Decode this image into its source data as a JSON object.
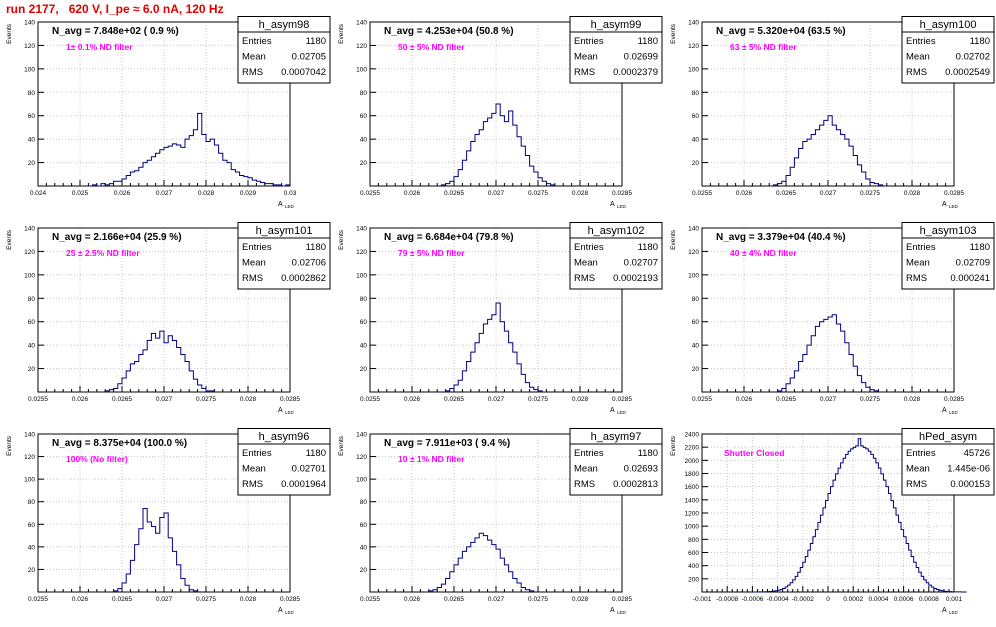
{
  "header": {
    "run_title": "run 2177,   620 V, I_pe ≈ 6.0 nA, 120 Hz"
  },
  "common": {
    "ylabel": "Events",
    "xlabel": "A",
    "xlabel_sub": "LED"
  },
  "colors": {
    "hist": "#000080",
    "filter": "#ff00ff",
    "title": "#e00000",
    "grid": "#c8c8c8"
  },
  "stats_labels": {
    "entries": "Entries",
    "mean": "Mean",
    "rms": "RMS"
  },
  "chart_data": [
    {
      "type": "bar",
      "name": "h_asym98",
      "navg": "N_avg = 7.848e+02 ( 0.9 %)",
      "filter": "1± 0.1% ND filter",
      "stats": {
        "entries": "1180",
        "mean": "0.02705",
        "rms": "0.0007042"
      },
      "xlim": [
        0.024,
        0.03
      ],
      "ylim": [
        0,
        140
      ],
      "xticks": [
        "0.024",
        "0.025",
        "0.026",
        "0.027",
        "0.028",
        "0.029",
        "0.03"
      ],
      "yticks": [
        "20",
        "40",
        "60",
        "80",
        "100",
        "120",
        "140"
      ],
      "bins_start": 0.0252,
      "bin_width": 0.0001,
      "values": [
        0,
        1,
        0,
        2,
        1,
        2,
        4,
        4,
        6,
        9,
        12,
        13,
        16,
        20,
        22,
        25,
        28,
        31,
        33,
        34,
        36,
        35,
        33,
        40,
        43,
        48,
        62,
        44,
        38,
        40,
        35,
        28,
        22,
        20,
        14,
        12,
        9,
        8,
        7,
        5,
        4,
        3,
        2,
        2,
        1,
        1,
        0,
        1
      ]
    },
    {
      "type": "bar",
      "name": "h_asym99",
      "navg": "N_avg = 4.253e+04 (50.8 %)",
      "filter": "50 ± 5% ND filter",
      "stats": {
        "entries": "1180",
        "mean": "0.02699",
        "rms": "0.0002379"
      },
      "xlim": [
        0.0255,
        0.0285
      ],
      "ylim": [
        0,
        140
      ],
      "xticks": [
        "0.0255",
        "0.026",
        "0.0265",
        "0.027",
        "0.0275",
        "0.028",
        "0.0285"
      ],
      "yticks": [
        "20",
        "40",
        "60",
        "80",
        "100",
        "120",
        "140"
      ],
      "bins_start": 0.02635,
      "bin_width": 5e-05,
      "values": [
        1,
        2,
        4,
        8,
        14,
        22,
        30,
        38,
        44,
        48,
        55,
        58,
        62,
        70,
        60,
        55,
        64,
        52,
        42,
        34,
        26,
        17,
        12,
        7,
        4,
        2,
        1
      ]
    },
    {
      "type": "bar",
      "name": "h_asym100",
      "navg": "N_avg = 5.320e+04 (63.5 %)",
      "filter": "63 ± 5% ND filter",
      "stats": {
        "entries": "1180",
        "mean": "0.02702",
        "rms": "0.0002549"
      },
      "xlim": [
        0.0255,
        0.0285
      ],
      "ylim": [
        0,
        140
      ],
      "xticks": [
        "0.0255",
        "0.026",
        "0.0265",
        "0.027",
        "0.0275",
        "0.028",
        "0.0285"
      ],
      "yticks": [
        "20",
        "40",
        "60",
        "80",
        "100",
        "120",
        "140"
      ],
      "bins_start": 0.02635,
      "bin_width": 5e-05,
      "values": [
        1,
        2,
        4,
        9,
        16,
        24,
        32,
        38,
        40,
        44,
        48,
        52,
        56,
        60,
        52,
        48,
        44,
        40,
        34,
        26,
        18,
        12,
        6,
        3,
        2,
        1
      ]
    },
    {
      "type": "bar",
      "name": "h_asym101",
      "navg": "N_avg = 2.166e+04 (25.9 %)",
      "filter": "25 ± 2.5% ND filter",
      "stats": {
        "entries": "1180",
        "mean": "0.02706",
        "rms": "0.0002862"
      },
      "xlim": [
        0.0255,
        0.0285
      ],
      "ylim": [
        0,
        140
      ],
      "xticks": [
        "0.0255",
        "0.026",
        "0.0265",
        "0.027",
        "0.0275",
        "0.028",
        "0.0285"
      ],
      "yticks": [
        "20",
        "40",
        "60",
        "80",
        "100",
        "120",
        "140"
      ],
      "bins_start": 0.0263,
      "bin_width": 5e-05,
      "values": [
        1,
        2,
        3,
        7,
        12,
        18,
        24,
        26,
        32,
        36,
        44,
        50,
        46,
        52,
        42,
        48,
        44,
        38,
        32,
        26,
        18,
        11,
        6,
        3,
        1,
        1
      ]
    },
    {
      "type": "bar",
      "name": "h_asym102",
      "navg": "N_avg = 6.684e+04 (79.8 %)",
      "filter": "79 ± 5% ND filter",
      "stats": {
        "entries": "1180",
        "mean": "0.02707",
        "rms": "0.0002193"
      },
      "xlim": [
        0.0255,
        0.0285
      ],
      "ylim": [
        0,
        140
      ],
      "xticks": [
        "0.0255",
        "0.026",
        "0.0265",
        "0.027",
        "0.0275",
        "0.028",
        "0.0285"
      ],
      "yticks": [
        "20",
        "40",
        "60",
        "80",
        "100",
        "120",
        "140"
      ],
      "bins_start": 0.0264,
      "bin_width": 5e-05,
      "values": [
        1,
        3,
        6,
        10,
        18,
        26,
        34,
        42,
        50,
        58,
        62,
        66,
        76,
        60,
        52,
        42,
        34,
        24,
        15,
        8,
        4,
        2,
        1
      ]
    },
    {
      "type": "bar",
      "name": "h_asym103",
      "navg": "N_avg = 3.379e+04 (40.4 %)",
      "filter": "40 ± 4% ND filter",
      "stats": {
        "entries": "1180",
        "mean": "0.02709",
        "rms": "0.000241"
      },
      "xlim": [
        0.0255,
        0.0285
      ],
      "ylim": [
        0,
        140
      ],
      "xticks": [
        "0.0255",
        "0.026",
        "0.0265",
        "0.027",
        "0.0275",
        "0.028",
        "0.0285"
      ],
      "yticks": [
        "20",
        "40",
        "60",
        "80",
        "100",
        "120",
        "140"
      ],
      "bins_start": 0.0264,
      "bin_width": 5e-05,
      "values": [
        1,
        3,
        7,
        12,
        18,
        26,
        32,
        40,
        48,
        56,
        60,
        62,
        64,
        66,
        58,
        52,
        42,
        32,
        22,
        14,
        8,
        4,
        2,
        1
      ]
    },
    {
      "type": "bar",
      "name": "h_asym96",
      "navg": "N_avg = 8.375e+04 (100.0 %)",
      "filter": "100% (No filter)",
      "stats": {
        "entries": "1180",
        "mean": "0.02701",
        "rms": "0.0001964"
      },
      "xlim": [
        0.0255,
        0.0285
      ],
      "ylim": [
        0,
        140
      ],
      "xticks": [
        "0.0255",
        "0.026",
        "0.0265",
        "0.027",
        "0.0275",
        "0.028",
        "0.0285"
      ],
      "yticks": [
        "20",
        "40",
        "60",
        "80",
        "100",
        "120",
        "140"
      ],
      "bins_start": 0.0264,
      "bin_width": 5e-05,
      "values": [
        1,
        3,
        8,
        16,
        28,
        42,
        56,
        74,
        62,
        58,
        52,
        66,
        70,
        48,
        36,
        24,
        12,
        6,
        2,
        1
      ]
    },
    {
      "type": "bar",
      "name": "h_asym97",
      "navg": "N_avg = 7.911e+03 ( 9.4 %)",
      "filter": "10 ± 1% ND filter",
      "stats": {
        "entries": "1180",
        "mean": "0.02693",
        "rms": "0.0002813"
      },
      "xlim": [
        0.0255,
        0.0285
      ],
      "ylim": [
        0,
        140
      ],
      "xticks": [
        "0.0255",
        "0.026",
        "0.0265",
        "0.027",
        "0.0275",
        "0.028",
        "0.0285"
      ],
      "yticks": [
        "20",
        "40",
        "60",
        "80",
        "100",
        "120",
        "140"
      ],
      "bins_start": 0.0262,
      "bin_width": 5e-05,
      "values": [
        1,
        2,
        4,
        7,
        12,
        18,
        24,
        30,
        36,
        40,
        44,
        48,
        52,
        50,
        46,
        42,
        38,
        30,
        24,
        18,
        12,
        8,
        4,
        2,
        1
      ]
    },
    {
      "type": "bar",
      "name": "hPed_asym",
      "navg": "",
      "filter": "Shutter Closed",
      "stats": {
        "entries": "45726",
        "mean": "1.445e-06",
        "rms": "0.000153"
      },
      "xlim": [
        -0.001,
        0.001
      ],
      "ylim": [
        0,
        2400
      ],
      "xticks": [
        "-0.001",
        "-0.0008",
        "-0.0006",
        "-0.0004",
        "-0.0002",
        "0",
        "0.0002",
        "0.0004",
        "0.0006",
        "0.0008",
        "0.001"
      ],
      "yticks": [
        "200",
        "400",
        "600",
        "800",
        "1000",
        "1200",
        "1400",
        "1600",
        "1800",
        "2000",
        "2200",
        "2400"
      ],
      "bins_start": -0.0006,
      "bin_width": 2e-05,
      "values": [
        0,
        0,
        1,
        1,
        2,
        3,
        5,
        8,
        12,
        18,
        26,
        38,
        54,
        76,
        104,
        140,
        184,
        238,
        300,
        372,
        452,
        540,
        636,
        736,
        840,
        948,
        1058,
        1168,
        1278,
        1388,
        1496,
        1600,
        1700,
        1794,
        1882,
        1962,
        2032,
        2090,
        2138,
        2174,
        2196,
        2220,
        2330,
        2220,
        2196,
        2174,
        2138,
        2090,
        2032,
        1962,
        1882,
        1794,
        1700,
        1600,
        1496,
        1388,
        1278,
        1168,
        1058,
        948,
        840,
        736,
        636,
        540,
        452,
        372,
        300,
        238,
        184,
        140,
        104,
        76,
        54,
        38,
        26,
        18,
        12,
        8,
        5,
        3,
        2,
        1,
        1,
        0,
        0
      ]
    }
  ]
}
